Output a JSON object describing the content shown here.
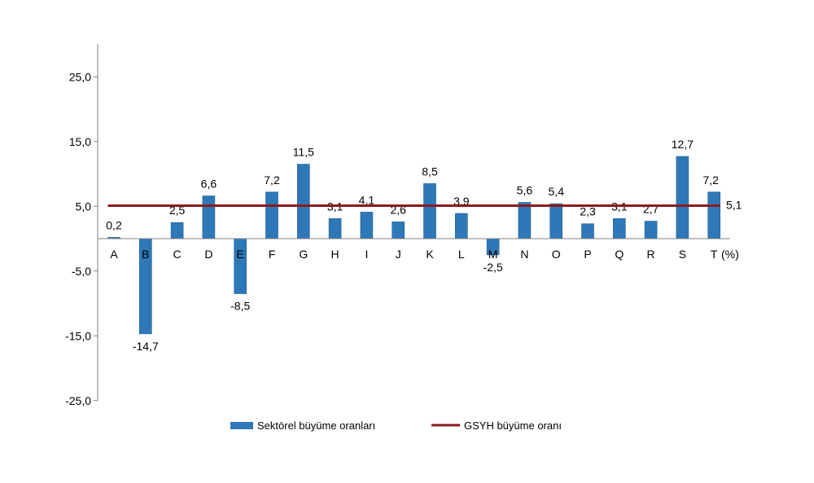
{
  "chart_data": {
    "type": "bar",
    "title": "",
    "xlabel": "",
    "ylabel": "",
    "unit_label": "(%)",
    "ylim": [
      -25,
      30
    ],
    "yticks": [
      25,
      15,
      5,
      -5,
      -15,
      -25
    ],
    "ytick_labels": [
      "25,0",
      "15,0",
      "5,0",
      "-5,0",
      "-15,0",
      "-25,0"
    ],
    "categories": [
      "A",
      "B",
      "C",
      "D",
      "E",
      "F",
      "G",
      "H",
      "I",
      "J",
      "K",
      "L",
      "M",
      "N",
      "O",
      "P",
      "Q",
      "R",
      "S",
      "T"
    ],
    "series": [
      {
        "name": "Sektörel büyüme oranları",
        "color": "#2e78b7",
        "values": [
          0.2,
          -14.7,
          2.5,
          6.6,
          -8.5,
          7.2,
          11.5,
          3.1,
          4.1,
          2.6,
          8.5,
          3.9,
          -2.5,
          5.6,
          5.4,
          2.3,
          3.1,
          2.7,
          12.7,
          7.2
        ],
        "labels": [
          "0,2",
          "-14,7",
          "2,5",
          "6,6",
          "-8,5",
          "7,2",
          "11,5",
          "3,1",
          "4,1",
          "2,6",
          "8,5",
          "3,9",
          "-2,5",
          "5,6",
          "5,4",
          "2,3",
          "3,1",
          "2,7",
          "12,7",
          "7,2"
        ]
      }
    ],
    "reference_line": {
      "name": "GSYH büyüme oranı",
      "color": "#8b1a1a",
      "value": 5.1,
      "label": "5,1"
    },
    "grid": false,
    "legend": "bottom"
  }
}
